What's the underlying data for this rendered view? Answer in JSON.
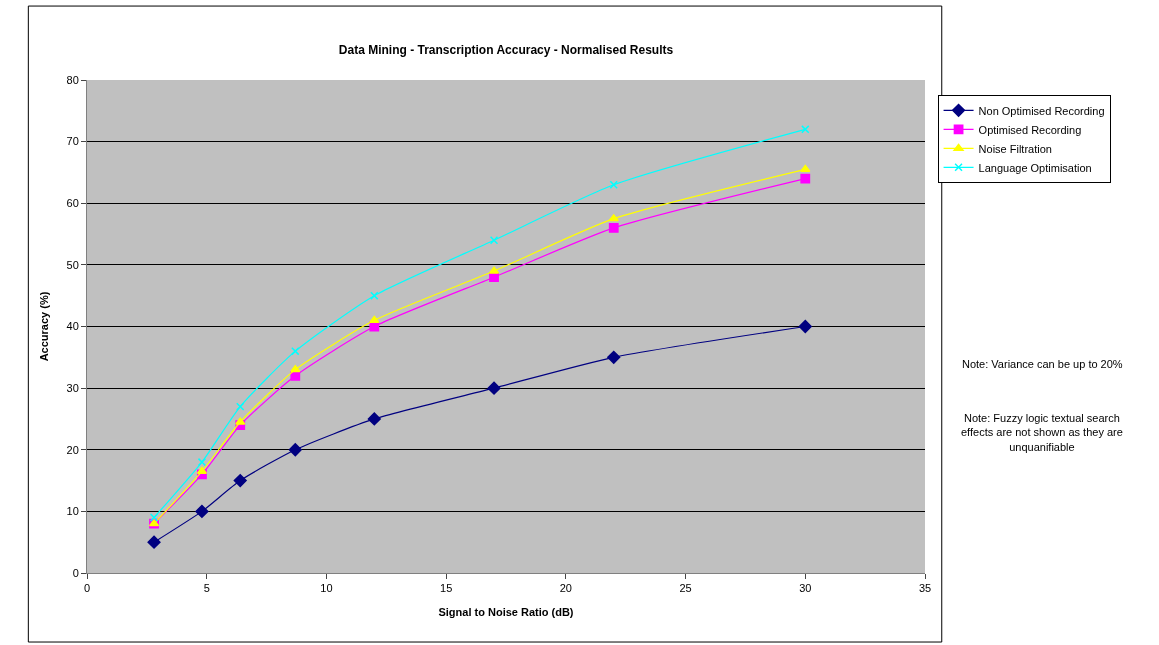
{
  "chart_data": {
    "type": "line",
    "title": "Data Mining - Transcription Accuracy - Normalised Results",
    "xlabel": "Signal to Noise Ratio (dB)",
    "ylabel": "Accuracy (%)",
    "x": [
      2.8,
      4.8,
      6.4,
      8.7,
      12,
      17,
      22,
      30
    ],
    "series": [
      {
        "name": "Non Optimised Recording",
        "color": "#000080",
        "marker": "diamond",
        "values": [
          5,
          10,
          15,
          20,
          25,
          30,
          35,
          40
        ]
      },
      {
        "name": "Optimised Recording",
        "color": "#ff00ff",
        "marker": "square",
        "values": [
          8,
          16,
          24,
          32,
          40,
          48,
          56,
          64
        ]
      },
      {
        "name": "Noise Filtration",
        "color": "#ffff00",
        "marker": "triangle",
        "values": [
          8,
          16.5,
          24.5,
          33,
          41,
          49,
          57.5,
          65.5
        ]
      },
      {
        "name": "Language Optimisation",
        "color": "#00ffff",
        "marker": "cross",
        "values": [
          9,
          18,
          27,
          36,
          45,
          54,
          63,
          72
        ]
      }
    ],
    "xlim": [
      0,
      35
    ],
    "xticks": [
      0,
      5,
      10,
      15,
      20,
      25,
      30,
      35
    ],
    "ylim": [
      0,
      80
    ],
    "yticks": [
      0,
      10,
      20,
      30,
      40,
      50,
      60,
      70,
      80
    ],
    "grid": "y",
    "legend": "right",
    "annotations": [
      "Note: Variance can be up to 20%",
      "Note: Fuzzy logic textual search effects are not shown as they are unquanifiable"
    ]
  }
}
